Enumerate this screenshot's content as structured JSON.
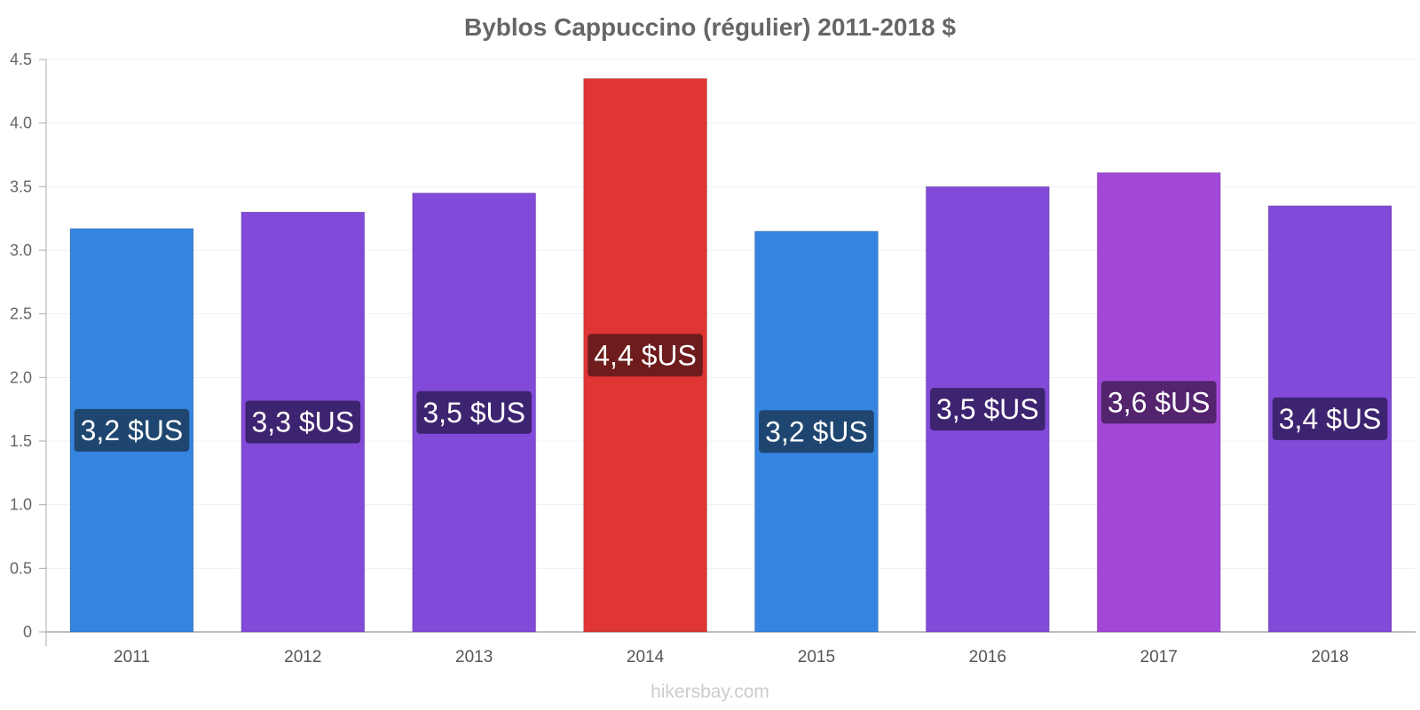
{
  "chart_data": {
    "type": "bar",
    "title": "Byblos Cappuccino (régulier) 2011-2018 $",
    "xlabel": "",
    "ylabel": "",
    "ylim": [
      0,
      4.5
    ],
    "yticks": [
      0,
      0.5,
      1.0,
      1.5,
      2.0,
      2.5,
      3.0,
      3.5,
      4.0,
      4.5
    ],
    "ytick_labels": [
      "0",
      "0.5",
      "1.0",
      "1.5",
      "2.0",
      "2.5",
      "3.0",
      "3.5",
      "4.0",
      "4.5"
    ],
    "categories": [
      "2011",
      "2012",
      "2013",
      "2014",
      "2015",
      "2016",
      "2017",
      "2018"
    ],
    "values": [
      3.17,
      3.3,
      3.45,
      4.35,
      3.15,
      3.5,
      3.61,
      3.35
    ],
    "data_labels": [
      "3,2 $US",
      "3,3 $US",
      "3,5 $US",
      "4,4 $US",
      "3,2 $US",
      "3,5 $US",
      "3,6 $US",
      "3,4 $US"
    ],
    "bar_colors": [
      "#3584e0",
      "#824ad8",
      "#824ad8",
      "#e03535",
      "#3584e0",
      "#824ad8",
      "#a347d8",
      "#824ad8"
    ],
    "label_colors": [
      "#1e4670",
      "#3d2470",
      "#3d2470",
      "#6e1c1c",
      "#1e4670",
      "#3d2470",
      "#54246e",
      "#3d2470"
    ],
    "grid": true,
    "legend": "none"
  },
  "watermark": "hikersbay.com"
}
